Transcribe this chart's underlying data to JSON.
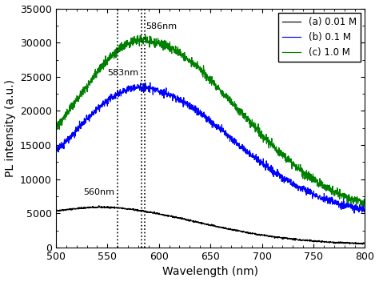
{
  "title": "",
  "xlabel": "Wavelength (nm)",
  "ylabel": "PL intensity (a.u.)",
  "xlim": [
    500,
    800
  ],
  "ylim": [
    0,
    35000
  ],
  "yticks": [
    0,
    5000,
    10000,
    15000,
    20000,
    25000,
    30000,
    35000
  ],
  "xticks": [
    500,
    550,
    600,
    650,
    700,
    750,
    800
  ],
  "legend_labels": [
    "(a) 0.01 M",
    "(b) 0.1 M",
    "(c) 1.0 M"
  ],
  "peak_a": 560,
  "peak_b": 583,
  "peak_c": 586,
  "label_560": "560nm",
  "label_583": "583nm",
  "label_586": "586nm",
  "background_color": "white",
  "seed": 42
}
